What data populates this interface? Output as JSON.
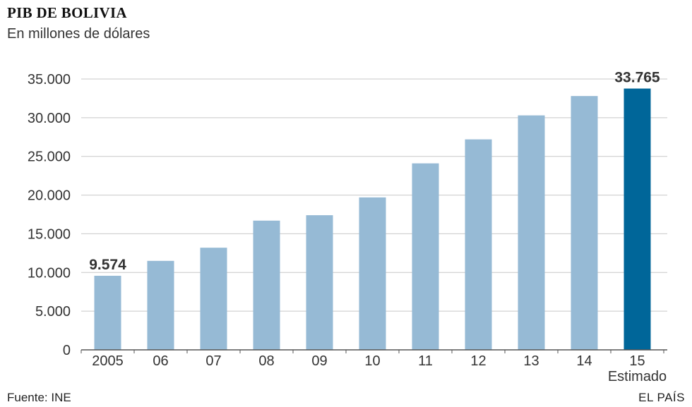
{
  "header": {
    "title": "PIB DE BOLIVIA",
    "subtitle": "En millones de dólares"
  },
  "footer": {
    "source": "Fuente: INE",
    "brand": "EL PAÍS"
  },
  "colors": {
    "bar": "#96bad5",
    "highlight": "#006699",
    "grid": "#c8c8c8",
    "axis": "#555555"
  },
  "chart_data": {
    "type": "bar",
    "title": "PIB DE BOLIVIA",
    "subtitle": "En millones de dólares",
    "xlabel": "",
    "ylabel": "",
    "categories": [
      "2005",
      "06",
      "07",
      "08",
      "09",
      "10",
      "11",
      "12",
      "13",
      "14",
      "15"
    ],
    "category_notes": [
      "",
      "",
      "",
      "",
      "",
      "",
      "",
      "",
      "",
      "",
      "Estimado"
    ],
    "values": [
      9574,
      11500,
      13200,
      16700,
      17400,
      19700,
      24100,
      27200,
      30300,
      32800,
      33765
    ],
    "highlight_index": 10,
    "data_labels": [
      {
        "index": 0,
        "text": "9.574"
      },
      {
        "index": 10,
        "text": "33.765"
      }
    ],
    "ylim": [
      0,
      35000
    ],
    "yticks": [
      0,
      5000,
      10000,
      15000,
      20000,
      25000,
      30000,
      35000
    ],
    "ytick_labels": [
      "0",
      "5.000",
      "10.000",
      "15.000",
      "20.000",
      "25.000",
      "30.000",
      "35.000"
    ],
    "grid": true,
    "legend": "none"
  }
}
